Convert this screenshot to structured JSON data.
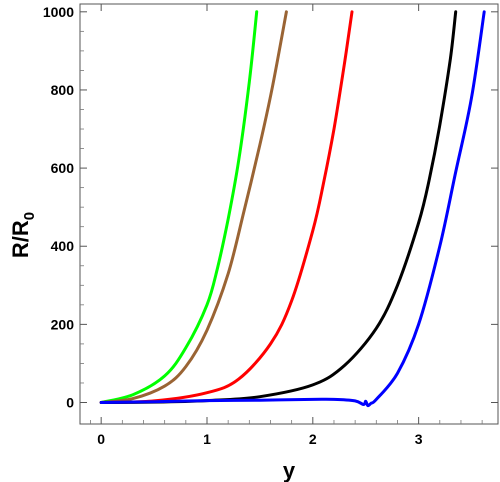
{
  "chart_data": {
    "type": "line",
    "title": "",
    "xlabel": "y",
    "ylabel": {
      "main": "R/R",
      "subscript": "0"
    },
    "xlim": [
      -0.2,
      3.75
    ],
    "ylim": [
      -55,
      1020
    ],
    "x_ticks": [
      0,
      1,
      2,
      3
    ],
    "x_tick_labels": [
      "0",
      "1",
      "2",
      "3"
    ],
    "y_ticks": [
      0,
      200,
      400,
      600,
      800,
      1000
    ],
    "y_tick_labels": [
      "0",
      "200",
      "400",
      "600",
      "800",
      "1000"
    ],
    "grid": false,
    "legend": "none",
    "series": [
      {
        "color": "#00ff00",
        "points": [
          [
            0,
            0
          ],
          [
            0.3,
            20
          ],
          [
            0.6,
            68
          ],
          [
            0.8,
            140
          ],
          [
            1.0,
            250
          ],
          [
            1.1,
            345
          ],
          [
            1.2,
            470
          ],
          [
            1.3,
            620
          ],
          [
            1.4,
            820
          ],
          [
            1.47,
            1000
          ]
        ]
      },
      {
        "color": "#9a6434",
        "points": [
          [
            0,
            0
          ],
          [
            0.3,
            10
          ],
          [
            0.6,
            42
          ],
          [
            0.8,
            92
          ],
          [
            1.0,
            185
          ],
          [
            1.2,
            330
          ],
          [
            1.35,
            490
          ],
          [
            1.5,
            660
          ],
          [
            1.62,
            810
          ],
          [
            1.75,
            1000
          ]
        ]
      },
      {
        "color": "#ff0000",
        "points": [
          [
            0,
            0
          ],
          [
            0.5,
            4
          ],
          [
            1.0,
            25
          ],
          [
            1.3,
            60
          ],
          [
            1.6,
            150
          ],
          [
            1.8,
            260
          ],
          [
            2.0,
            440
          ],
          [
            2.1,
            560
          ],
          [
            2.2,
            700
          ],
          [
            2.3,
            870
          ],
          [
            2.37,
            1000
          ]
        ]
      },
      {
        "color": "#000000",
        "points": [
          [
            0,
            0
          ],
          [
            0.5,
            1
          ],
          [
            1.0,
            5
          ],
          [
            1.5,
            15
          ],
          [
            2.0,
            45
          ],
          [
            2.3,
            95
          ],
          [
            2.6,
            190
          ],
          [
            2.8,
            300
          ],
          [
            3.0,
            460
          ],
          [
            3.1,
            570
          ],
          [
            3.2,
            710
          ],
          [
            3.3,
            880
          ],
          [
            3.35,
            1000
          ]
        ]
      },
      {
        "color": "#0000ff",
        "points": [
          [
            0,
            0
          ],
          [
            0.5,
            2
          ],
          [
            1.0,
            5
          ],
          [
            1.5,
            6
          ],
          [
            2.0,
            8
          ],
          [
            2.2,
            8
          ],
          [
            2.4,
            4
          ],
          [
            2.48,
            -5
          ],
          [
            2.5,
            3
          ],
          [
            2.52,
            -8
          ],
          [
            2.55,
            -2
          ],
          [
            2.6,
            8
          ],
          [
            2.8,
            75
          ],
          [
            3.0,
            200
          ],
          [
            3.2,
            400
          ],
          [
            3.35,
            590
          ],
          [
            3.5,
            780
          ],
          [
            3.62,
            1000
          ]
        ]
      }
    ]
  }
}
